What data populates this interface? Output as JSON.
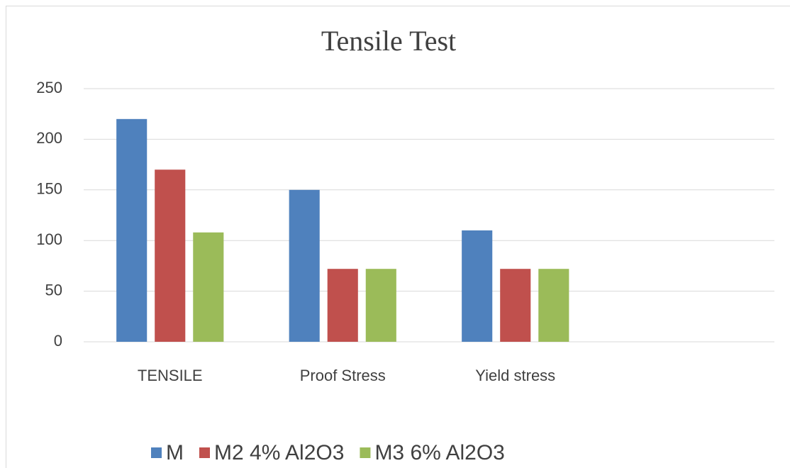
{
  "chart_data": {
    "type": "bar",
    "title": "Tensile Test",
    "categories": [
      "TENSILE",
      "Proof Stress",
      "Yield stress",
      null
    ],
    "series": [
      {
        "name": "M",
        "color": "#4f81bd",
        "values": [
          220,
          150,
          110,
          null
        ]
      },
      {
        "name": "M2 4% Al2O3",
        "color": "#c0504d",
        "values": [
          170,
          72,
          72,
          null
        ]
      },
      {
        "name": "M3 6% Al2O3",
        "color": "#9bbb59",
        "values": [
          108,
          72,
          72,
          null
        ]
      }
    ],
    "ylim": [
      0,
      250
    ],
    "yticks": [
      0,
      50,
      100,
      150,
      200,
      250
    ],
    "grid": true,
    "legend": "bottom"
  }
}
